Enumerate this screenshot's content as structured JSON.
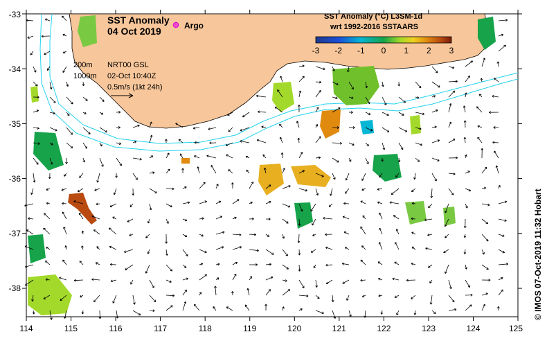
{
  "map": {
    "title": "SST Anomaly",
    "date": "04 Oct 2019",
    "argo_label": "Argo",
    "legend_title": "SST Anomaly (°C) L3SM-1d",
    "legend_subtitle": "wrt 1992-2016 SSTAARS",
    "colorbar_ticks": [
      "-3",
      "-2",
      "-1",
      "0",
      "1",
      "2",
      "3"
    ],
    "contour_200": "200m",
    "contour_1000": "1000m",
    "product": "NRT00 GSL",
    "product_time": "02-Oct 10:40Z",
    "scale_label": "0.5m/s (1kt 24h)",
    "credit": "© IMOS 07-Oct-2019 11:32 Hobart",
    "x_ticks": [
      "114",
      "115",
      "116",
      "117",
      "118",
      "119",
      "120",
      "121",
      "122",
      "123",
      "124",
      "125"
    ],
    "y_ticks": [
      "-33",
      "-34",
      "-35",
      "-36",
      "-37",
      "-38"
    ],
    "colors": {
      "land": "#f7c69a",
      "contour": "#22d3ee",
      "argo": "#e000e0",
      "anomaly_ramp": [
        "#1e3a8a",
        "#1d4ed8",
        "#06b6d4",
        "#16a34a",
        "#a3d92a",
        "#f0d020",
        "#e08a10",
        "#b94a10",
        "#7a1a08"
      ]
    }
  }
}
